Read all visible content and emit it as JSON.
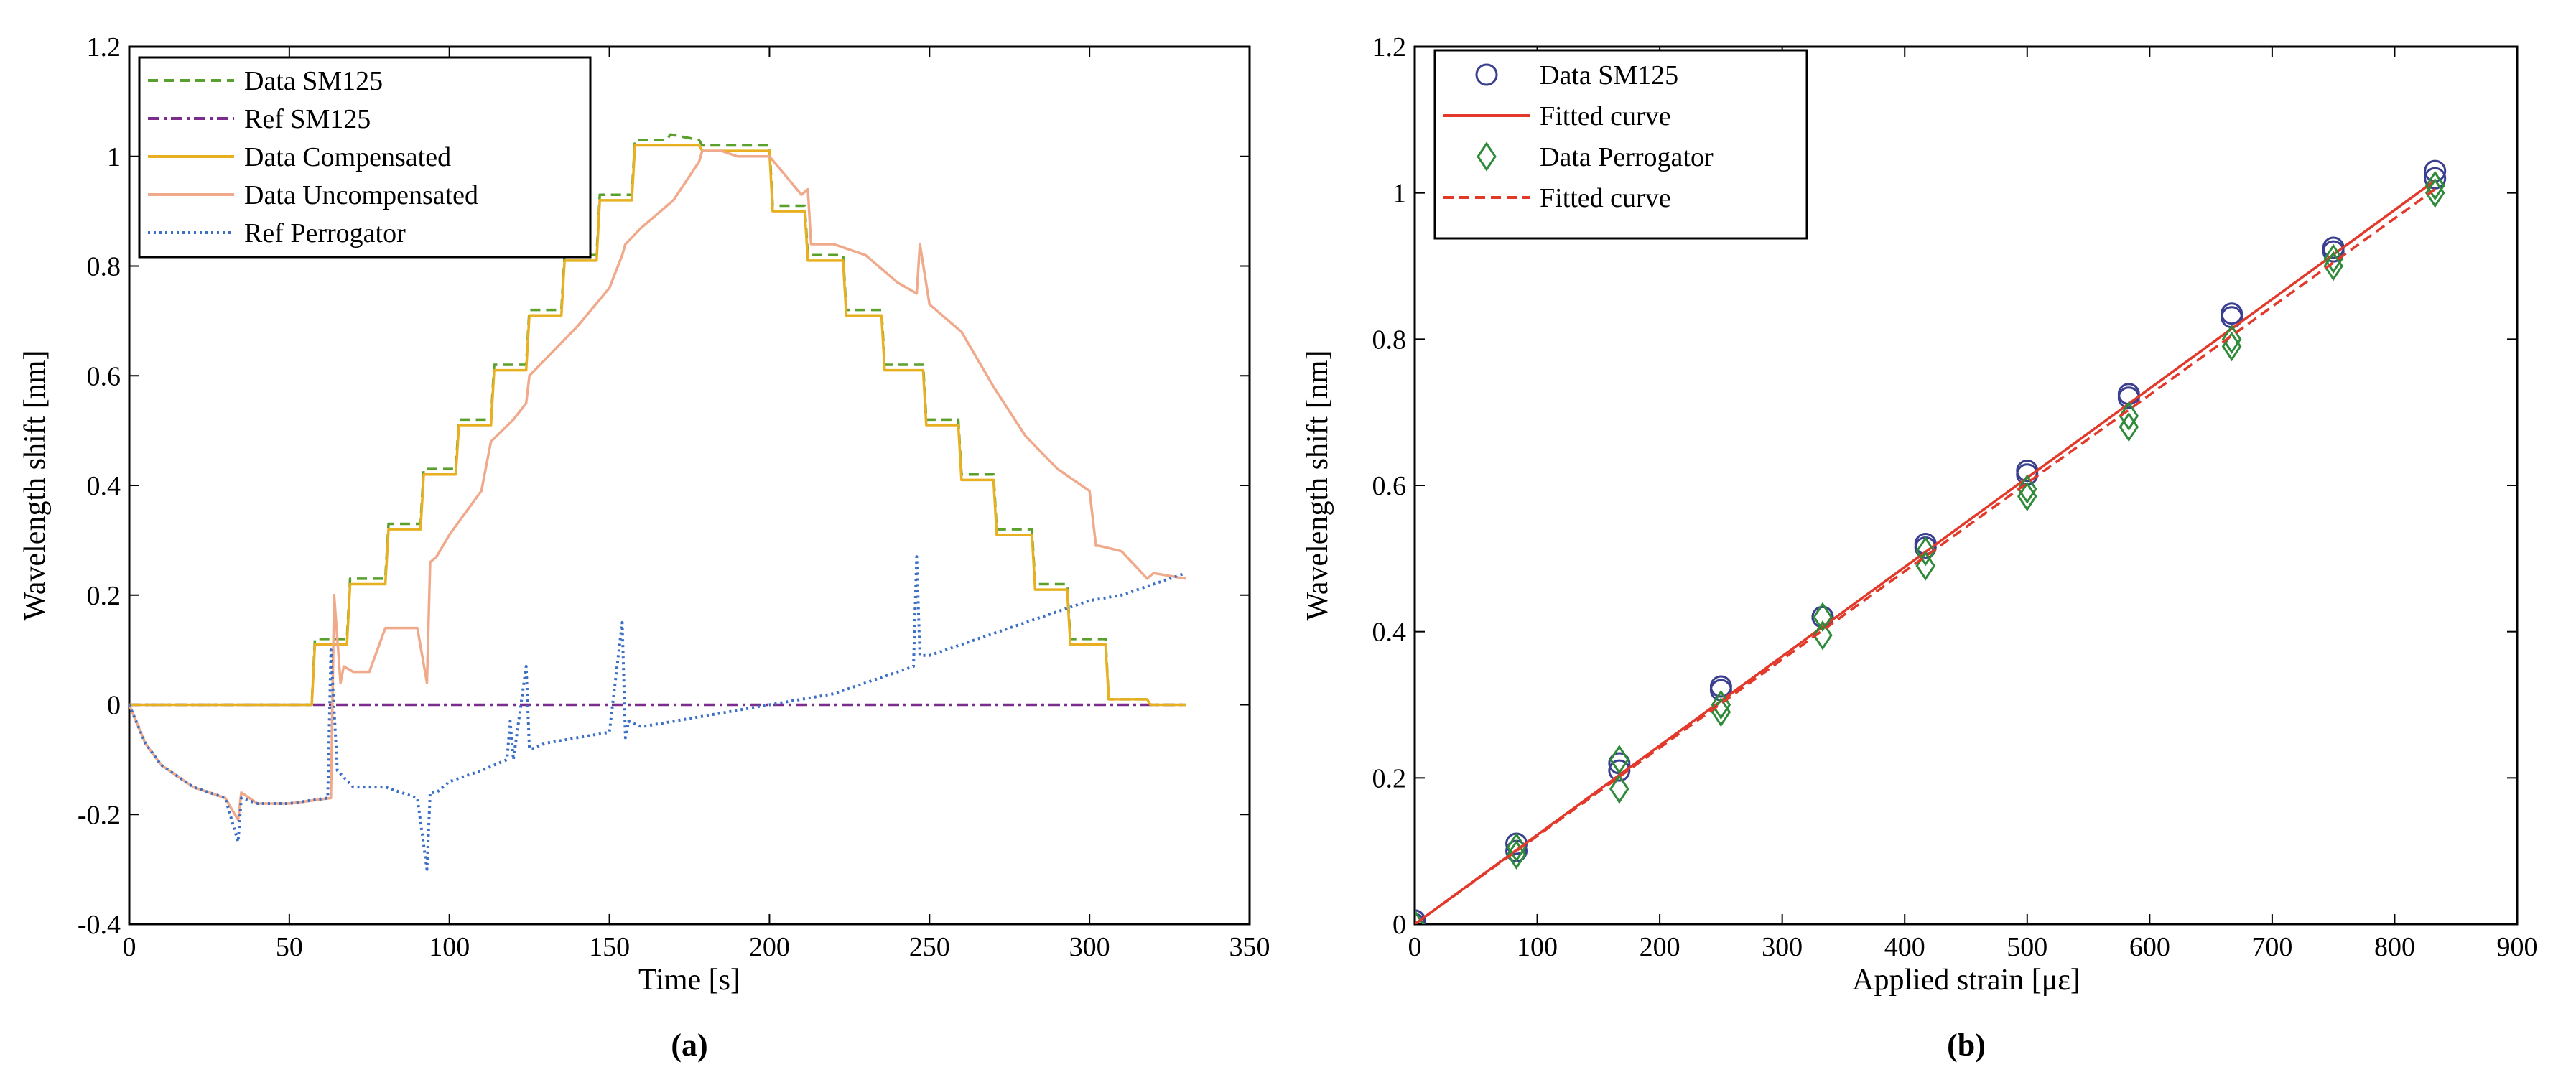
{
  "chart_data": [
    {
      "type": "line",
      "panel_label": "(a)",
      "xlabel": "Time [s]",
      "ylabel": "Wavelength shift [nm]",
      "xlim": [
        0,
        350
      ],
      "ylim": [
        -0.4,
        1.2
      ],
      "xticks": [
        0,
        50,
        100,
        150,
        200,
        250,
        300,
        350
      ],
      "yticks": [
        -0.4,
        -0.2,
        0,
        0.2,
        0.4,
        0.6,
        0.8,
        1,
        1.2
      ],
      "ytick_labels": [
        "-0.4",
        "-0.2",
        "0",
        "0.2",
        "0.4",
        "0.6",
        "0.8",
        "1",
        "1.2"
      ],
      "legend_position": "top-left",
      "series": [
        {
          "name": "Data SM125",
          "color": "#5aa02c",
          "style": "dashed",
          "x": [
            0,
            57,
            58,
            68,
            69,
            80,
            81,
            91,
            92,
            102,
            103,
            113,
            114,
            124,
            125,
            135,
            136,
            146,
            147,
            157,
            158,
            168,
            169,
            178,
            179,
            200,
            201,
            211,
            212,
            223,
            224,
            235,
            236,
            248,
            249,
            259,
            260,
            270,
            271,
            282,
            283,
            293,
            294,
            305,
            306,
            318,
            319,
            330
          ],
          "y": [
            0,
            0,
            0.12,
            0.12,
            0.23,
            0.23,
            0.33,
            0.33,
            0.43,
            0.43,
            0.52,
            0.52,
            0.62,
            0.62,
            0.72,
            0.72,
            0.82,
            0.82,
            0.93,
            0.93,
            1.03,
            1.03,
            1.04,
            1.03,
            1.02,
            1.02,
            0.91,
            0.91,
            0.82,
            0.82,
            0.72,
            0.72,
            0.62,
            0.62,
            0.52,
            0.52,
            0.42,
            0.42,
            0.32,
            0.32,
            0.22,
            0.22,
            0.12,
            0.12,
            0.01,
            0.01,
            0,
            0
          ]
        },
        {
          "name": "Ref SM125",
          "color": "#7b2d8e",
          "style": "dashdot",
          "x": [
            0,
            330
          ],
          "y": [
            0,
            0
          ]
        },
        {
          "name": "Data Compensated",
          "color": "#e8b021",
          "style": "solid",
          "x": [
            0,
            57,
            58,
            68,
            69,
            80,
            81,
            91,
            92,
            102,
            103,
            113,
            114,
            124,
            125,
            135,
            136,
            146,
            147,
            157,
            158,
            168,
            169,
            178,
            179,
            200,
            201,
            211,
            212,
            223,
            224,
            235,
            236,
            248,
            249,
            259,
            260,
            270,
            271,
            282,
            283,
            293,
            294,
            305,
            306,
            318,
            319,
            330
          ],
          "y": [
            0,
            0,
            0.11,
            0.11,
            0.22,
            0.22,
            0.32,
            0.32,
            0.42,
            0.42,
            0.51,
            0.51,
            0.61,
            0.61,
            0.71,
            0.71,
            0.81,
            0.81,
            0.92,
            0.92,
            1.02,
            1.02,
            1.02,
            1.02,
            1.01,
            1.01,
            0.9,
            0.9,
            0.81,
            0.81,
            0.71,
            0.71,
            0.61,
            0.61,
            0.51,
            0.51,
            0.41,
            0.41,
            0.31,
            0.31,
            0.21,
            0.21,
            0.11,
            0.11,
            0.01,
            0.01,
            0,
            0
          ]
        },
        {
          "name": "Data Uncompensated",
          "color": "#f0a98a",
          "style": "solid",
          "x": [
            0,
            5,
            10,
            20,
            30,
            34,
            35,
            40,
            50,
            63,
            64,
            66,
            67,
            70,
            75,
            80,
            90,
            93,
            94,
            96,
            100,
            110,
            112,
            113,
            120,
            124,
            125,
            130,
            140,
            150,
            154,
            155,
            160,
            170,
            178,
            179,
            185,
            190,
            200,
            210,
            212,
            213,
            220,
            230,
            240,
            246,
            247,
            250,
            260,
            270,
            280,
            290,
            300,
            302,
            303,
            310,
            318,
            320,
            330
          ],
          "y": [
            0,
            -0.07,
            -0.11,
            -0.15,
            -0.17,
            -0.21,
            -0.16,
            -0.18,
            -0.18,
            -0.17,
            0.2,
            0.04,
            0.07,
            0.06,
            0.06,
            0.14,
            0.14,
            0.04,
            0.26,
            0.27,
            0.31,
            0.39,
            0.45,
            0.48,
            0.52,
            0.55,
            0.6,
            0.63,
            0.69,
            0.76,
            0.82,
            0.84,
            0.87,
            0.92,
            0.99,
            1.01,
            1.01,
            1.0,
            1.0,
            0.93,
            0.94,
            0.84,
            0.84,
            0.82,
            0.77,
            0.75,
            0.84,
            0.73,
            0.68,
            0.58,
            0.49,
            0.43,
            0.39,
            0.29,
            0.29,
            0.28,
            0.23,
            0.24,
            0.23
          ]
        },
        {
          "name": "Ref Perrogator",
          "color": "#3b6fc6",
          "style": "dotted",
          "x": [
            0,
            5,
            10,
            20,
            30,
            34,
            35,
            40,
            50,
            62,
            63,
            65,
            70,
            80,
            90,
            93,
            94,
            96,
            100,
            110,
            118,
            119,
            120,
            124,
            125,
            126,
            130,
            140,
            150,
            154,
            155,
            156,
            160,
            170,
            180,
            190,
            200,
            210,
            220,
            230,
            240,
            245,
            246,
            247,
            250,
            260,
            270,
            280,
            290,
            300,
            310,
            320,
            330
          ],
          "y": [
            0,
            -0.07,
            -0.11,
            -0.15,
            -0.17,
            -0.25,
            -0.17,
            -0.18,
            -0.18,
            -0.17,
            0.1,
            -0.12,
            -0.15,
            -0.15,
            -0.17,
            -0.3,
            -0.16,
            -0.16,
            -0.14,
            -0.12,
            -0.1,
            -0.03,
            -0.1,
            0.07,
            -0.08,
            -0.08,
            -0.07,
            -0.06,
            -0.05,
            0.15,
            -0.06,
            -0.03,
            -0.04,
            -0.03,
            -0.02,
            -0.01,
            0.0,
            0.01,
            0.02,
            0.04,
            0.06,
            0.07,
            0.27,
            0.09,
            0.09,
            0.11,
            0.13,
            0.15,
            0.17,
            0.19,
            0.2,
            0.22,
            0.24
          ]
        }
      ]
    },
    {
      "type": "scatter",
      "panel_label": "(b)",
      "xlabel": "Applied strain [με]",
      "ylabel": "Wavelength shift [nm]",
      "xlim": [
        0,
        900
      ],
      "ylim": [
        0,
        1.2
      ],
      "xticks": [
        0,
        100,
        200,
        300,
        400,
        500,
        600,
        700,
        800,
        900
      ],
      "yticks": [
        0,
        0.2,
        0.4,
        0.6,
        0.8,
        1,
        1.2
      ],
      "ytick_labels": [
        "0",
        "0.2",
        "0.4",
        "0.6",
        "0.8",
        "1",
        "1.2"
      ],
      "legend_position": "top-left",
      "series": [
        {
          "name": "Data SM125",
          "color": "#3a3f8f",
          "marker": "circle",
          "x": [
            0,
            0,
            83,
            83,
            167,
            167,
            250,
            250,
            333,
            333,
            417,
            417,
            500,
            500,
            583,
            583,
            667,
            667,
            750,
            750,
            833,
            833
          ],
          "y": [
            0,
            0.005,
            0.1,
            0.11,
            0.21,
            0.22,
            0.32,
            0.325,
            0.42,
            0.42,
            0.515,
            0.52,
            0.615,
            0.62,
            0.72,
            0.725,
            0.83,
            0.835,
            0.92,
            0.925,
            1.02,
            1.03
          ]
        },
        {
          "name": "Fitted curve",
          "color": "#e2392b",
          "style": "solid",
          "x": [
            0,
            833
          ],
          "y": [
            0.0,
            1.017
          ]
        },
        {
          "name": "Data Perrogator",
          "color": "#2f8a3a",
          "marker": "diamond",
          "x": [
            0,
            0,
            83,
            83,
            167,
            167,
            250,
            250,
            333,
            333,
            417,
            417,
            500,
            500,
            583,
            583,
            667,
            667,
            750,
            750,
            833,
            833
          ],
          "y": [
            0,
            0,
            0.095,
            0.105,
            0.185,
            0.225,
            0.29,
            0.3,
            0.395,
            0.42,
            0.49,
            0.51,
            0.585,
            0.595,
            0.68,
            0.695,
            0.79,
            0.8,
            0.9,
            0.91,
            1.0,
            1.01
          ]
        },
        {
          "name": "Fitted curve",
          "color": "#e2392b",
          "style": "dashed",
          "x": [
            0,
            833
          ],
          "y": [
            0.0,
            1.005
          ]
        }
      ]
    }
  ]
}
